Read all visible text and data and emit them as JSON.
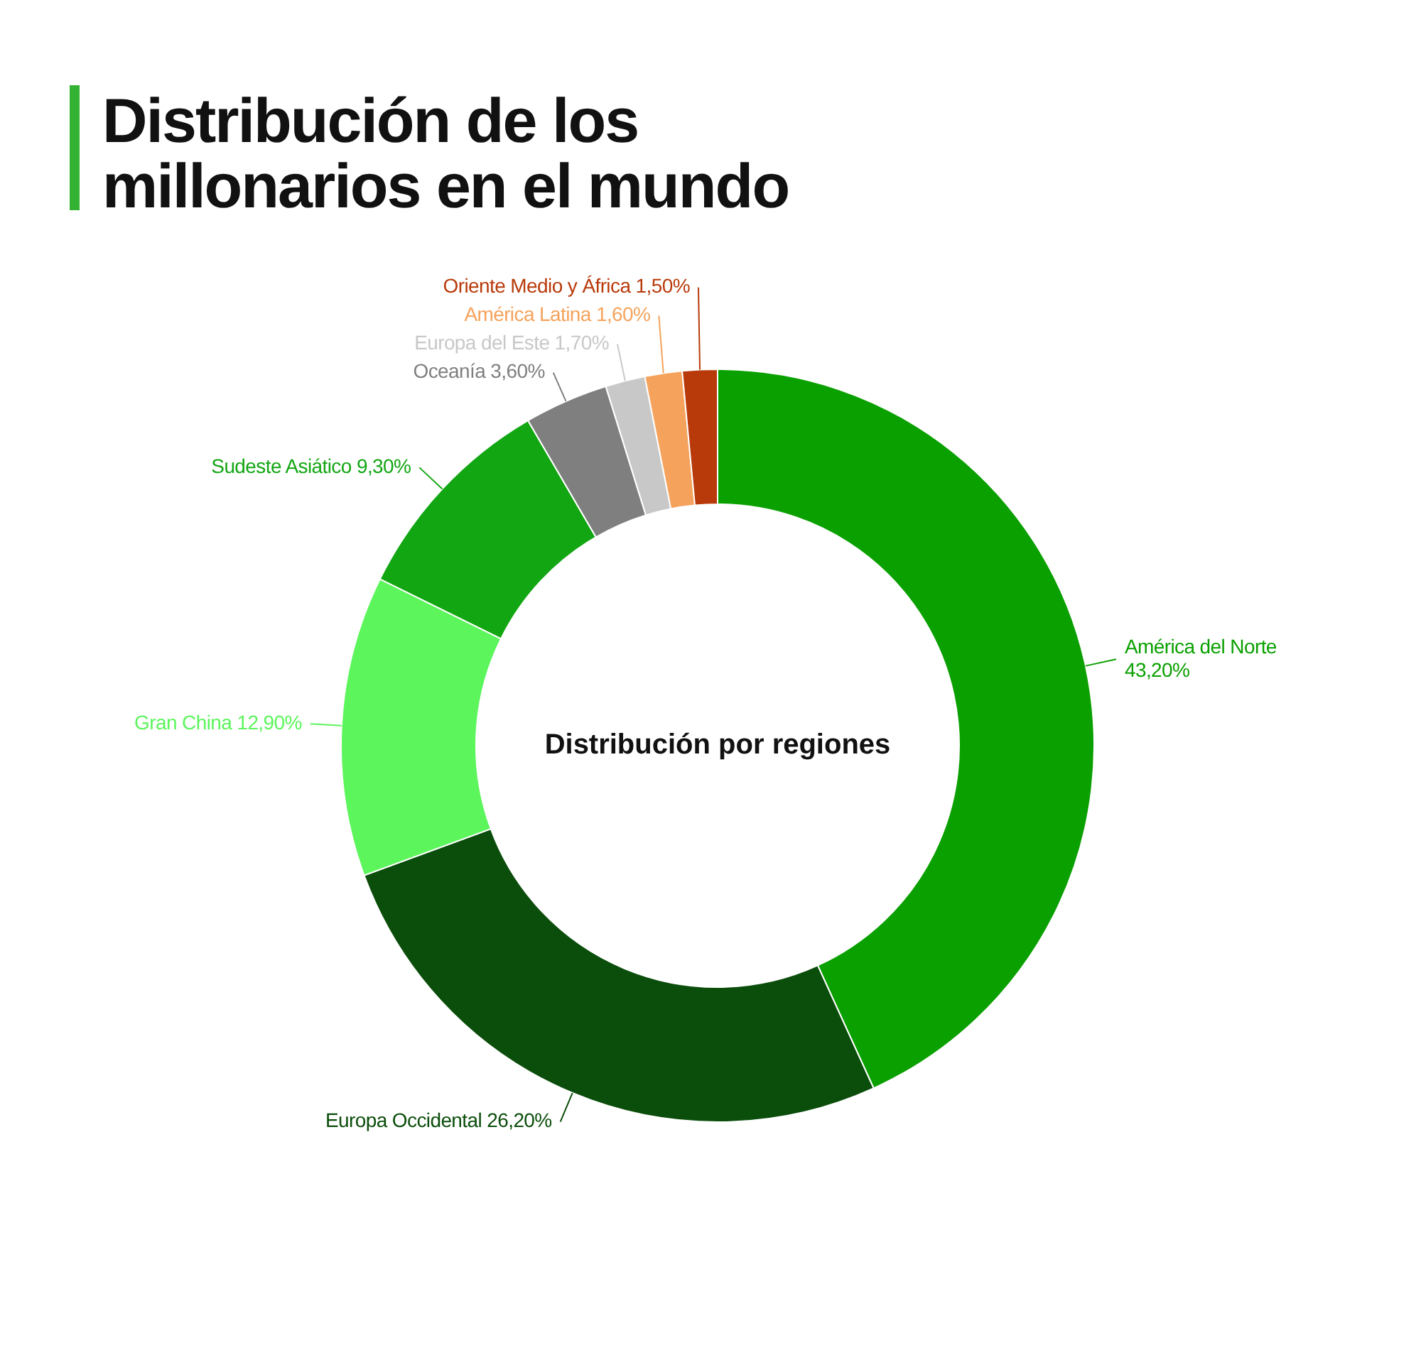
{
  "chart_data": {
    "type": "donut",
    "title": "Distribución de los millonarios en el mundo",
    "subtitle": "Distribución por regiones",
    "categories": [
      "América del Norte",
      "Europa Occidental",
      "Gran China",
      "Sudeste Asiático",
      "Oceanía",
      "Europa del Este",
      "América Latina",
      "Oriente Medio y África"
    ],
    "values": [
      43.2,
      26.2,
      12.9,
      9.3,
      3.6,
      1.7,
      1.6,
      1.5
    ],
    "colors": [
      "#0aa000",
      "#0b4d0b",
      "#5cf55c",
      "#13a613",
      "#7f7f7f",
      "#c8c8c8",
      "#f5a35c",
      "#b83a0a"
    ],
    "value_labels": [
      "43,20%",
      "26,20%",
      "12,90%",
      "9,30%",
      "3,60%",
      "1,70%",
      "1,60%",
      "1,50%"
    ]
  }
}
